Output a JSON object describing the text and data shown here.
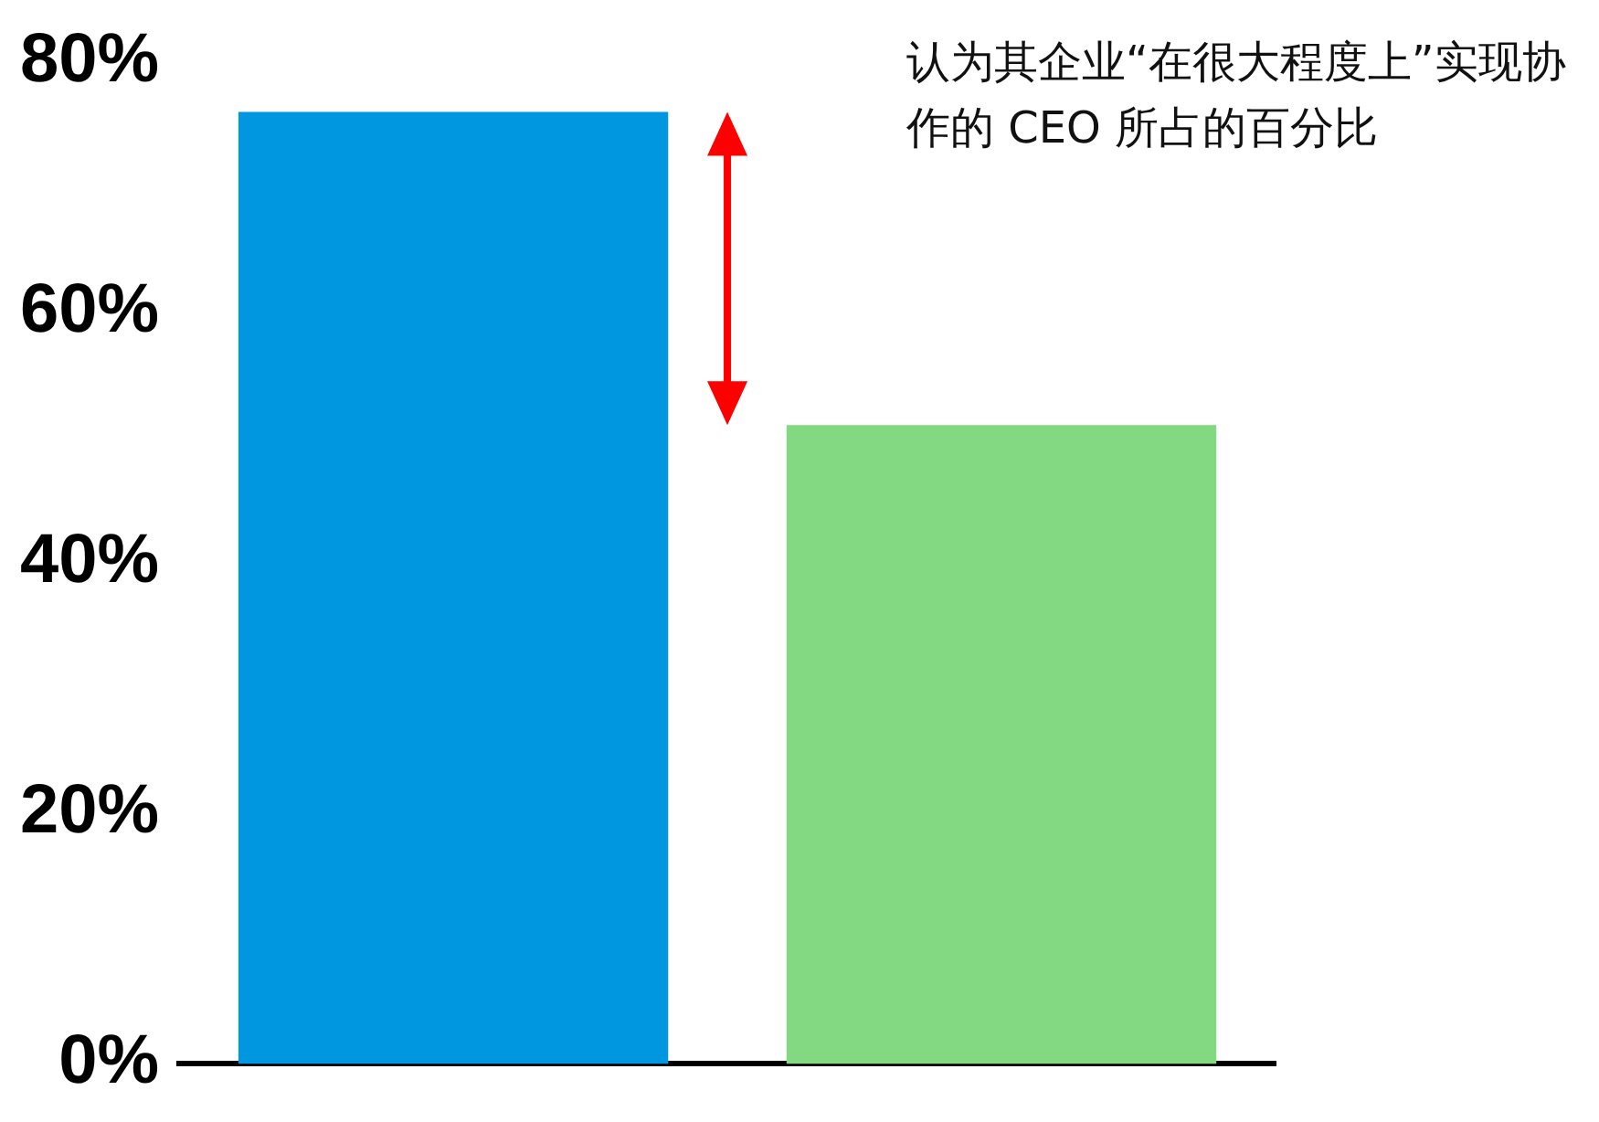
{
  "chart_data": {
    "type": "bar",
    "categories": [
      null,
      null
    ],
    "values": [
      76,
      51
    ],
    "colors": [
      "#0096e0",
      "#82d982"
    ],
    "ylim": [
      0,
      80
    ],
    "yticks": [
      {
        "value": 0,
        "label": "0%"
      },
      {
        "value": 20,
        "label": "20%"
      },
      {
        "value": 40,
        "label": "40%"
      },
      {
        "value": 60,
        "label": "60%"
      },
      {
        "value": 80,
        "label": "80%"
      }
    ],
    "grid": false,
    "legend": false,
    "annotations": [
      "认为其企业“在很大程度上”实现协作的 CEO 所占的百分比"
    ]
  }
}
